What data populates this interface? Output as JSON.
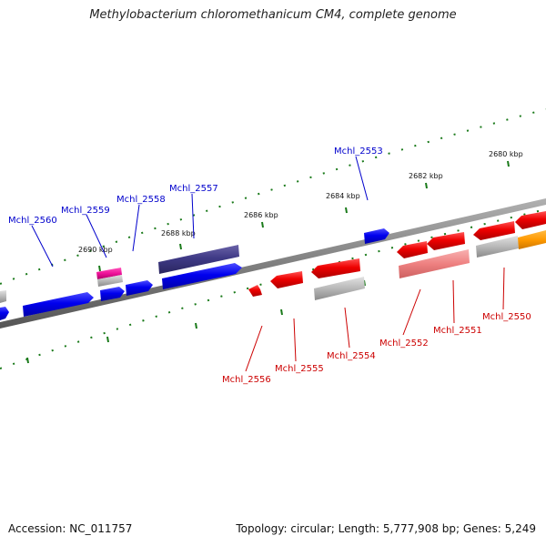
{
  "title": "Methylobacterium chloromethanicum CM4, complete genome",
  "accession": "Accession: NC_011757",
  "summary": "Topology: circular; Length: 5,777,908 bp; Genes: 5,249",
  "colors": {
    "plus_label": "#0000cc",
    "minus_label": "#cc0000",
    "tick": "#1a7a1a",
    "backbone": "#808080"
  },
  "scale_labels": [
    "2680 kbp",
    "2682 kbp",
    "2684 kbp",
    "2686 kbp",
    "2688 kbp",
    "2690 kbp"
  ],
  "genes_top": [
    {
      "label": "Mchl_2553",
      "color": "#0000cc"
    },
    {
      "label": "Mchl_2557",
      "color": "#0000cc"
    },
    {
      "label": "Mchl_2558",
      "color": "#0000cc"
    },
    {
      "label": "Mchl_2559",
      "color": "#0000cc"
    },
    {
      "label": "Mchl_2560",
      "color": "#0000cc"
    }
  ],
  "genes_bottom": [
    {
      "label": "Mchl_2550",
      "color": "#cc0000"
    },
    {
      "label": "Mchl_2551",
      "color": "#cc0000"
    },
    {
      "label": "Mchl_2552",
      "color": "#cc0000"
    },
    {
      "label": "Mchl_2554",
      "color": "#cc0000"
    },
    {
      "label": "Mchl_2555",
      "color": "#cc0000"
    },
    {
      "label": "Mchl_2556",
      "color": "#cc0000"
    }
  ]
}
